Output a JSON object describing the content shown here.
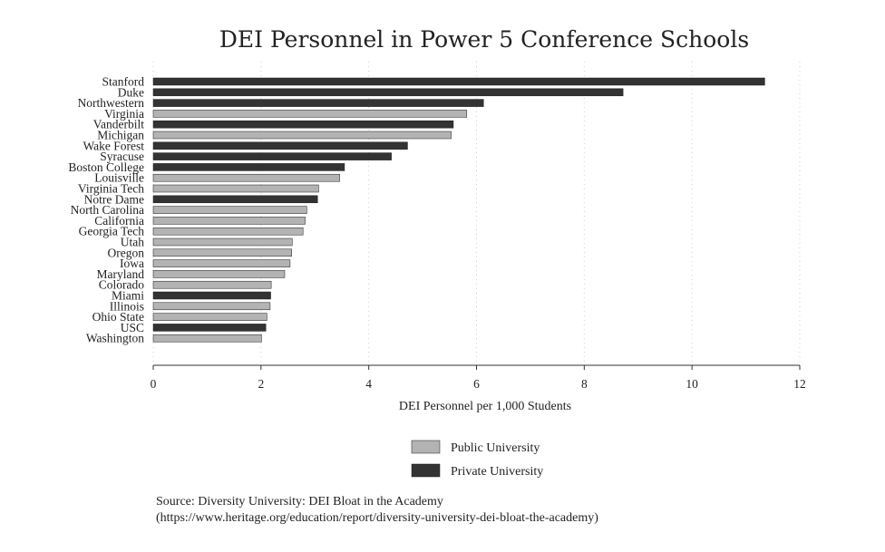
{
  "chart_data": {
    "type": "bar",
    "orientation": "horizontal",
    "title": "DEI Personnel in Power 5 Conference Schools",
    "xlabel": "DEI Personnel per 1,000 Students",
    "ylabel": "",
    "xlim": [
      0,
      12
    ],
    "xticks": [
      0,
      2,
      4,
      6,
      8,
      10,
      12
    ],
    "grid": true,
    "legend_position": "bottom",
    "colors": {
      "Public University": "#b3b3b3",
      "Private University": "#333333"
    },
    "legend": [
      {
        "label": "Public University"
      },
      {
        "label": "Private University"
      }
    ],
    "categories": [
      "Stanford",
      "Duke",
      "Northwestern",
      "Virginia",
      "Vanderbilt",
      "Michigan",
      "Wake Forest",
      "Syracuse",
      "Boston College",
      "Louisville",
      "Virginia Tech",
      "Notre Dame",
      "North Carolina",
      "California",
      "Georgia Tech",
      "Utah",
      "Oregon",
      "Iowa",
      "Maryland",
      "Colorado",
      "Miami",
      "Illinois",
      "Ohio State",
      "USC",
      "Washington"
    ],
    "values": [
      11.35,
      8.72,
      6.13,
      5.82,
      5.57,
      5.53,
      4.72,
      4.42,
      3.55,
      3.46,
      3.07,
      3.05,
      2.85,
      2.82,
      2.78,
      2.58,
      2.57,
      2.54,
      2.44,
      2.19,
      2.18,
      2.17,
      2.11,
      2.09,
      2.01
    ],
    "type_per_bar": [
      "Private University",
      "Private University",
      "Private University",
      "Public University",
      "Private University",
      "Public University",
      "Private University",
      "Private University",
      "Private University",
      "Public University",
      "Public University",
      "Private University",
      "Public University",
      "Public University",
      "Public University",
      "Public University",
      "Public University",
      "Public University",
      "Public University",
      "Public University",
      "Private University",
      "Public University",
      "Public University",
      "Private University",
      "Public University"
    ]
  },
  "source": {
    "line1": "Source: Diversity University: DEI Bloat in the Academy",
    "line2": "(https://www.heritage.org/education/report/diversity-university-dei-bloat-the-academy)"
  }
}
